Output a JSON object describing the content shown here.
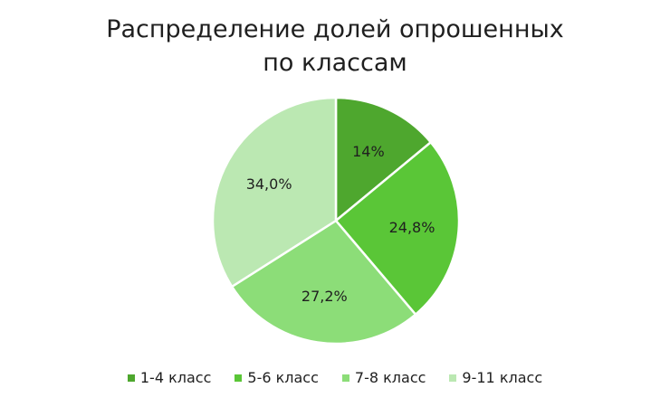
{
  "chart_data": {
    "type": "pie",
    "title_lines": [
      "Распределение долей опрошенных",
      "по классам"
    ],
    "categories": [
      "1-4 класс",
      "5-6 класс",
      "7-8 класс",
      "9-11 класс"
    ],
    "values": [
      14,
      24.8,
      27.2,
      34.0
    ],
    "labels": [
      "14%",
      "24,8%",
      "27,2%",
      "34,0%"
    ],
    "colors": [
      "#4ea72e",
      "#5ac637",
      "#8cdd78",
      "#bbe8b2"
    ],
    "legend_position": "bottom"
  }
}
